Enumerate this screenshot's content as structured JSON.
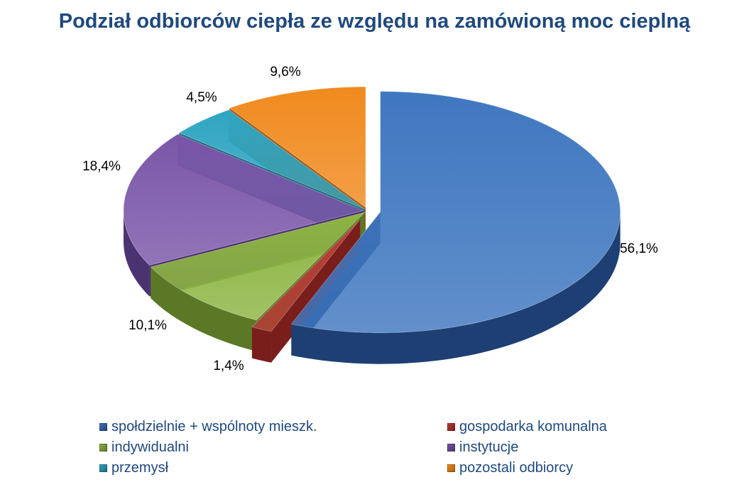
{
  "chart_data": {
    "type": "pie",
    "title": "Podział odbiorców ciepła ze względu na zamówioną moc cieplną",
    "slices": [
      {
        "name": "społdzielnie + wspólnoty mieszk.",
        "value": 56.1,
        "label": "56,1%",
        "color": "#3F77C0",
        "side_color": "#1E3F73"
      },
      {
        "name": "gospodarka komunalna",
        "value": 1.4,
        "label": "1,4%",
        "color": "#B83A36",
        "side_color": "#7A1E1B"
      },
      {
        "name": "indywidualni",
        "value": 10.1,
        "label": "10,1%",
        "color": "#8DB442",
        "side_color": "#5A7826"
      },
      {
        "name": "instytucje",
        "value": 18.4,
        "label": "18,4%",
        "color": "#7A56A8",
        "side_color": "#4B3270"
      },
      {
        "name": "przemysł",
        "value": 4.5,
        "label": "4,5%",
        "color": "#2FA5C2",
        "side_color": "#1B6C80"
      },
      {
        "name": "pozostali odbiorcy",
        "value": 9.6,
        "label": "9,6%",
        "color": "#F08A1E",
        "side_color": "#A85A0E"
      }
    ],
    "legend_placement": "bottom"
  }
}
